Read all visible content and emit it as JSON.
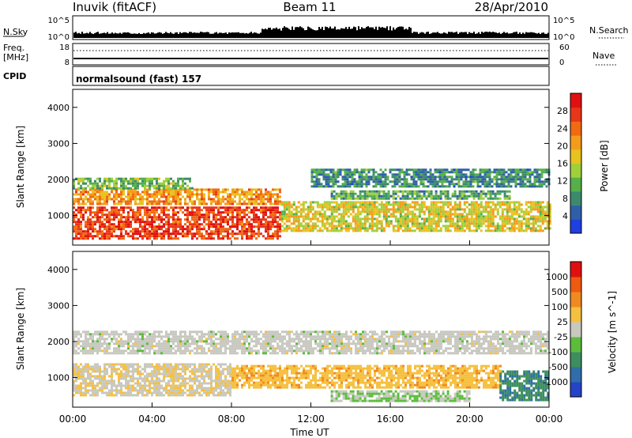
{
  "header": {
    "station": "Inuvik (fitACF)",
    "beam": "Beam 11",
    "date": "28/Apr/2010"
  },
  "nsky_panel": {
    "left_label": "N.Sky",
    "left_ticks": [
      "10^5",
      "10^0"
    ],
    "right_ticks": [
      "10^5",
      "10^0"
    ],
    "right_label": "N.Search"
  },
  "freq_panel": {
    "left_label_line1": "Freq.",
    "left_label_line2": "[MHz]",
    "left_ticks": [
      "18",
      "8"
    ],
    "right_ticks": [
      "60",
      "0"
    ],
    "right_label": "Nave"
  },
  "cpid_panel": {
    "left_label": "CPID",
    "program": "normalsound (fast) 157"
  },
  "chart_data": [
    {
      "type": "heatmap",
      "name": "power",
      "ylabel": "Slant Range [km]",
      "ylim": [
        180,
        4500
      ],
      "yticks": [
        "1000",
        "2000",
        "3000",
        "4000"
      ],
      "xlim": [
        "00:00",
        "24:00"
      ],
      "xticks": [
        "00:00",
        "04:00",
        "08:00",
        "12:00",
        "16:00",
        "20:00",
        "00:00"
      ],
      "colorbar": {
        "label": "Power [dB]",
        "tick_labels": [
          "4",
          "8",
          "12",
          "16",
          "20",
          "24",
          "28"
        ],
        "colors": [
          "#1f3fe0",
          "#2f5fa8",
          "#3c8a6e",
          "#55b04a",
          "#9fd03a",
          "#e8c21f",
          "#f59b1a",
          "#f06a12",
          "#e8361a",
          "#e01010"
        ],
        "range": [
          0,
          32
        ]
      },
      "bands": [
        {
          "t0": 0.0,
          "t1": 10.5,
          "r0": 350,
          "r1": 1250,
          "value": 27
        },
        {
          "t0": 0.0,
          "t1": 10.5,
          "r0": 1350,
          "r1": 1750,
          "value": 21
        },
        {
          "t0": 0.0,
          "t1": 6.0,
          "r0": 1750,
          "r1": 2050,
          "value": 12
        },
        {
          "t0": 10.5,
          "t1": 24.0,
          "r0": 550,
          "r1": 1400,
          "value": 17
        },
        {
          "t0": 13.0,
          "t1": 22.0,
          "r0": 1450,
          "r1": 1700,
          "value": 10
        },
        {
          "t0": 12.0,
          "t1": 24.0,
          "r0": 1800,
          "r1": 2300,
          "value": 8
        }
      ]
    },
    {
      "type": "heatmap",
      "name": "velocity",
      "ylabel": "Slant Range [km]",
      "ylim": [
        180,
        4500
      ],
      "yticks": [
        "1000",
        "2000",
        "3000",
        "4000"
      ],
      "xlabel": "Time UT",
      "xlim": [
        "00:00",
        "24:00"
      ],
      "xticks": [
        "00:00",
        "04:00",
        "08:00",
        "12:00",
        "16:00",
        "20:00",
        "00:00"
      ],
      "colorbar": {
        "label": "Velocity [m s^-1]",
        "tick_labels": [
          "1000",
          "500",
          "100",
          "25",
          "-25",
          "-100",
          "-500",
          "-1000"
        ],
        "colors": [
          "#2444c8",
          "#2f6ea8",
          "#3d8e5e",
          "#5cbc3c",
          "#c8c8c0",
          "#f5c040",
          "#f08a20",
          "#ee5a10",
          "#e01010"
        ],
        "range": [
          -1200,
          1200
        ]
      },
      "bands": [
        {
          "t0": 0.0,
          "t1": 24.0,
          "r0": 1700,
          "r1": 2300,
          "value": 0
        },
        {
          "t0": 0.0,
          "t1": 8.0,
          "r0": 500,
          "r1": 1400,
          "value": 100
        },
        {
          "t0": 8.0,
          "t1": 21.5,
          "r0": 700,
          "r1": 1350,
          "value": 300
        },
        {
          "t0": 13.0,
          "t1": 20.0,
          "r0": 350,
          "r1": 650,
          "value": -150
        },
        {
          "t0": 21.5,
          "t1": 24.0,
          "r0": 400,
          "r1": 1200,
          "value": -600
        }
      ]
    }
  ]
}
